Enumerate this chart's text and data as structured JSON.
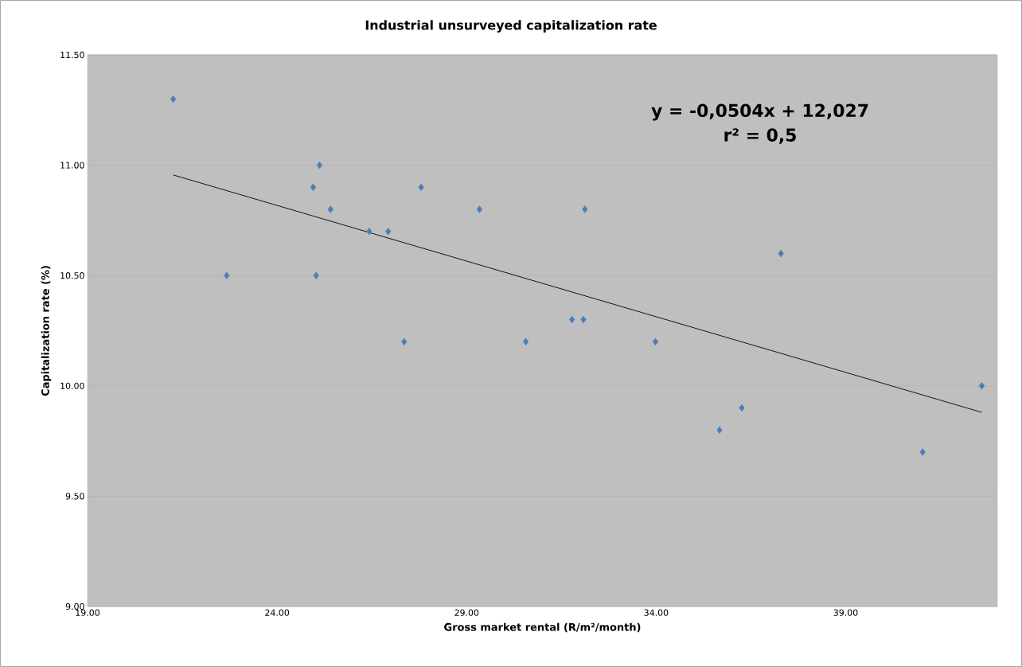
{
  "chart_data": {
    "type": "scatter",
    "title": "Industrial  unsurveyed capitalization rate",
    "xlabel": "Gross market rental (R/m²/month)",
    "ylabel": "Capitalization rate (%)",
    "xlim": [
      19,
      43
    ],
    "ylim": [
      9,
      11.5
    ],
    "xticks": [
      {
        "value": 19,
        "label": "19.00"
      },
      {
        "value": 24,
        "label": "24.00"
      },
      {
        "value": 29,
        "label": "29.00"
      },
      {
        "value": 34,
        "label": "34.00"
      },
      {
        "value": 39,
        "label": "39.00"
      }
    ],
    "yticks": [
      {
        "value": 9,
        "label": "9.00"
      },
      {
        "value": 9.5,
        "label": "9.50"
      },
      {
        "value": 10,
        "label": "10.00"
      },
      {
        "value": 10.5,
        "label": "10.50"
      },
      {
        "value": 11,
        "label": "11.00"
      },
      {
        "value": 11.5,
        "label": "11.50"
      }
    ],
    "grid": "y",
    "marker": "diamond",
    "annotations": [
      "y = -0,0504x + 12,027",
      "r² = 0,5"
    ],
    "series": [
      {
        "color": "#4a7ebb",
        "x": [
          21.26,
          22.67,
          24.95,
          25.12,
          25.03,
          25.41,
          26.43,
          26.93,
          27.35,
          27.8,
          29.34,
          30.56,
          31.78,
          32.08,
          32.12,
          33.98,
          35.67,
          36.26,
          37.29,
          41.03,
          42.59
        ],
        "values": [
          11.3,
          10.5,
          10.9,
          11.0,
          10.5,
          10.8,
          10.7,
          10.7,
          10.2,
          10.9,
          10.8,
          10.2,
          10.3,
          10.3,
          10.8,
          10.2,
          9.8,
          9.9,
          10.6,
          9.7,
          10.0
        ]
      },
      {
        "type": "line",
        "color": "#000000",
        "marker": "none",
        "x": [
          21.26,
          42.59
        ],
        "values": [
          10.956,
          9.88
        ]
      }
    ]
  }
}
